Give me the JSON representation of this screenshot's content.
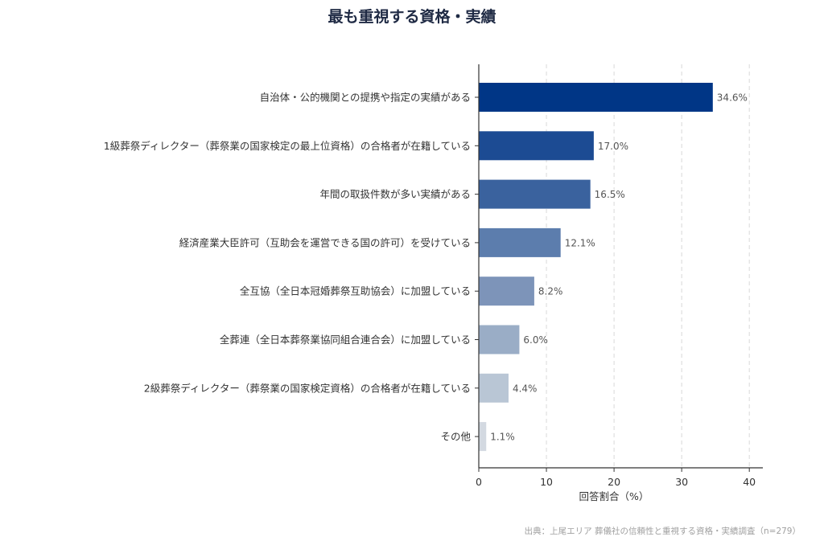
{
  "chart_data": {
    "type": "bar",
    "orientation": "horizontal",
    "title": "最も重視する資格・実績",
    "xlabel": "回答割合（%）",
    "ylabel": "",
    "xlim": [
      0,
      42
    ],
    "xticks": [
      0,
      10,
      20,
      30,
      40
    ],
    "grid": "vertical dashed",
    "legend": "none",
    "value_suffix": "%",
    "categories": [
      "自治体・公的機関との提携や指定の実績がある",
      "1級葬祭ディレクター（葬祭業の国家検定の最上位資格）の合格者が在籍している",
      "年間の取扱件数が多い実績がある",
      "経済産業大臣許可（互助会を運営できる国の許可）を受けている",
      "全互協（全日本冠婚葬祭互助協会）に加盟している",
      "全葬連（全日本葬祭業協同組合連合会）に加盟している",
      "2級葬祭ディレクター（葬祭業の国家検定資格）の合格者が在籍している",
      "その他"
    ],
    "values": [
      34.6,
      17.0,
      16.5,
      12.1,
      8.2,
      6.0,
      4.4,
      1.1
    ],
    "value_labels": [
      "34.6%",
      "17.0%",
      "16.5%",
      "12.1%",
      "8.2%",
      "6.0%",
      "4.4%",
      "1.1%"
    ],
    "colors": [
      "#003686",
      "#1c4b93",
      "#3a629e",
      "#5c7dad",
      "#7d94b9",
      "#9aadc6",
      "#b9c6d5",
      "#d3d9e1"
    ]
  },
  "source": "出典：上尾エリア 葬儀社の信頼性と重視する資格・実績調査（n=279）"
}
